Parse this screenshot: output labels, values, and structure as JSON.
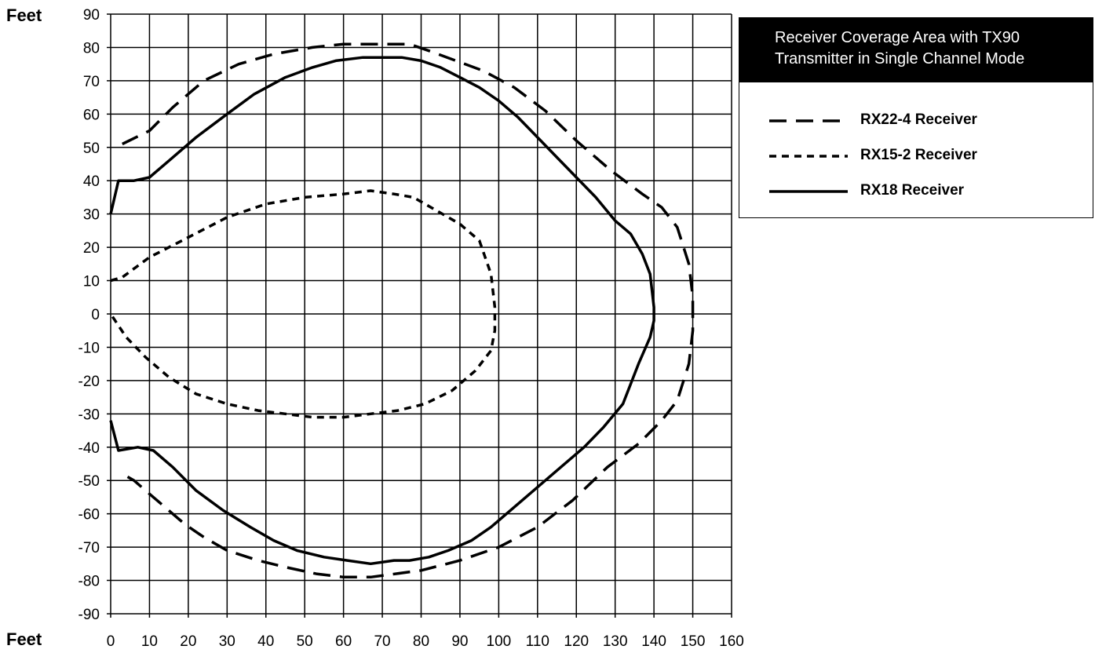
{
  "chart_data": {
    "type": "line",
    "axis_labels": {
      "y_unit": "Feet",
      "x_unit": "Feet"
    },
    "xlim": [
      0,
      160
    ],
    "ylim": [
      -90,
      90
    ],
    "x_ticks": [
      "0",
      "10",
      "20",
      "30",
      "40",
      "50",
      "60",
      "70",
      "80",
      "90",
      "100",
      "110",
      "120",
      "130",
      "140",
      "150",
      "160"
    ],
    "y_ticks": [
      "90",
      "80",
      "70",
      "60",
      "50",
      "40",
      "30",
      "20",
      "10",
      "0",
      "-10",
      "-20",
      "-30",
      "-40",
      "-50",
      "-60",
      "-70",
      "-80",
      "-90"
    ],
    "grid": true,
    "legend": {
      "placement": "top-right",
      "title_lines": [
        "Receiver Coverage Area with TX90",
        "Transmitter in Single Channel Mode"
      ]
    },
    "series": [
      {
        "name": "RX22-4 Receiver",
        "style": "long-dash",
        "x": [
          3,
          10,
          16,
          24,
          33,
          42,
          52,
          60,
          67,
          73,
          77,
          82,
          89,
          96,
          104,
          112,
          120,
          129,
          137,
          142,
          146,
          149,
          150,
          150,
          149,
          146,
          142,
          136,
          128,
          119,
          110,
          100,
          90,
          80,
          67,
          60,
          53,
          45,
          38,
          30,
          24,
          19,
          14,
          9,
          6,
          3
        ],
        "y": [
          51,
          55,
          62,
          70,
          75,
          78,
          80,
          81,
          81,
          81,
          81,
          79,
          76,
          73,
          68,
          61,
          52,
          43,
          36,
          32,
          26,
          15,
          5,
          -5,
          -15,
          -26,
          -32,
          -39,
          -46,
          -56,
          -64,
          -70,
          -74,
          -77,
          -79,
          -79,
          -78,
          -76,
          -74,
          -71,
          -67,
          -63,
          -58,
          -53,
          -50,
          -48
        ]
      },
      {
        "name": "RX15-2 Receiver",
        "style": "short-dash",
        "x": [
          0,
          3,
          10,
          20,
          30,
          40,
          50,
          60,
          67,
          73,
          78,
          84,
          90,
          95,
          98,
          99,
          99,
          98,
          94,
          88,
          81,
          74,
          67,
          60,
          52,
          45,
          38,
          30,
          22,
          15,
          9,
          4,
          0
        ],
        "y": [
          10,
          11,
          17,
          23,
          29,
          33,
          35,
          36,
          37,
          36,
          35,
          31,
          27,
          22,
          12,
          2,
          -5,
          -11,
          -17,
          -23,
          -27,
          -29,
          -30,
          -31,
          -31,
          -30,
          -29,
          -27,
          -24,
          -19,
          -13,
          -7,
          0
        ]
      },
      {
        "name": "RX18 Receiver",
        "style": "solid",
        "x": [
          0,
          2,
          6,
          10,
          15,
          22,
          30,
          37,
          45,
          52,
          58,
          65,
          70,
          75,
          80,
          85,
          90,
          95,
          100,
          105,
          110,
          115,
          120,
          125,
          130,
          134,
          137,
          139,
          140,
          140,
          139,
          136,
          132,
          127,
          122,
          116,
          110,
          104,
          98,
          93,
          87,
          82,
          77,
          73,
          67,
          61,
          55,
          48,
          42,
          36,
          29,
          22,
          16,
          11,
          7,
          2,
          0
        ],
        "y": [
          30,
          40,
          40,
          41,
          46,
          53,
          60,
          66,
          71,
          74,
          76,
          77,
          77,
          77,
          76,
          74,
          71,
          68,
          64,
          59,
          53,
          47,
          41,
          35,
          28,
          24,
          18,
          12,
          2,
          -2,
          -7,
          -15,
          -27,
          -34,
          -40,
          -46,
          -52,
          -58,
          -64,
          -68,
          -71,
          -73,
          -74,
          -74,
          -75,
          -74,
          -73,
          -71,
          -68,
          -64,
          -59,
          -53,
          -46,
          -41,
          -40,
          -41,
          -32
        ]
      }
    ]
  }
}
